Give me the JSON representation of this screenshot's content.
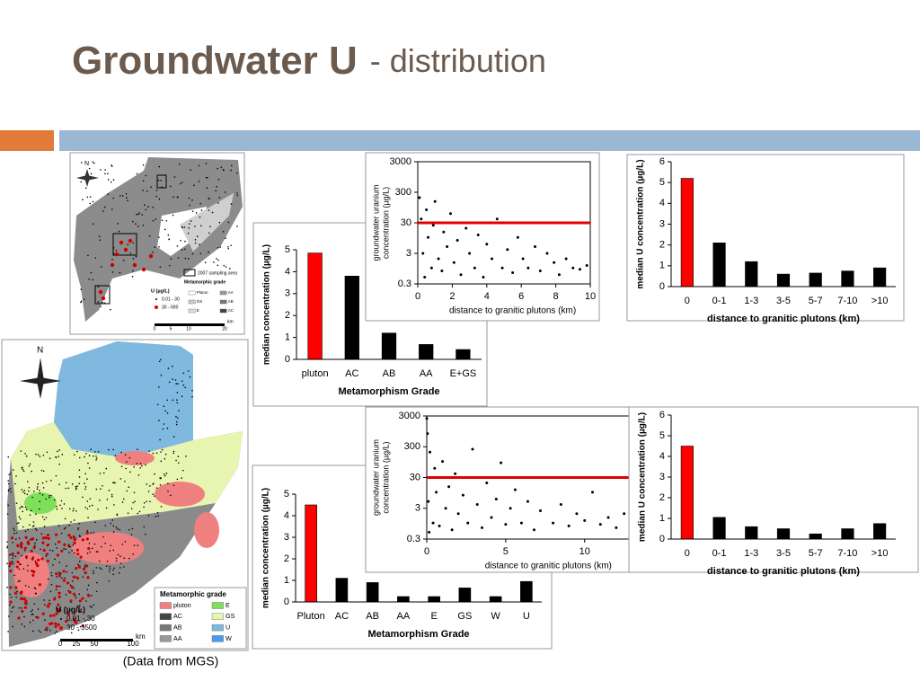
{
  "title": "Groundwater U",
  "subtitle": "- distribution",
  "caption": "(Data from MGS)",
  "maps": [
    {
      "north": "N",
      "sampling_area": "2007 sampling area",
      "legend_title": "Metamorphic grade",
      "grades": [
        "Pluton",
        "GS",
        "E",
        "AA",
        "AB",
        "AC"
      ],
      "grade_colors": [
        "#ffffff",
        "#cccccc",
        "#dddddd",
        "#999999",
        "#777777",
        "#444444"
      ],
      "u_title": "U (µg/L)",
      "u_classes": [
        "0.01 - 30",
        "30 - 690"
      ],
      "u_colors": [
        "#000000",
        "#e00000"
      ],
      "scale": [
        "0",
        "5",
        "10",
        "20"
      ],
      "scale_unit": "km"
    },
    {
      "north": "N",
      "legend_title": "Metamorphic grade",
      "grades": [
        "pluton",
        "E",
        "AC",
        "GS",
        "AB",
        "U",
        "AA",
        "W"
      ],
      "grade_colors": [
        "#f08080",
        "#7ee05a",
        "#444444",
        "#e8f5b0",
        "#777777",
        "#7fb9e0",
        "#999999",
        "#4a9be8"
      ],
      "u_title": "U (µg/L)",
      "u_classes": [
        "0.01 - 30",
        "30 - 3500"
      ],
      "u_colors": [
        "#000000",
        "#e00000"
      ],
      "scale": [
        "0",
        "25",
        "50",
        "100"
      ],
      "scale_unit": "km"
    }
  ],
  "chart_data": [
    {
      "type": "bar",
      "categories": [
        "pluton",
        "AC",
        "AB",
        "AA",
        "E+GS"
      ],
      "values": [
        4.85,
        3.8,
        1.2,
        0.68,
        0.45
      ],
      "colors": [
        "#ff0000",
        "#000000",
        "#000000",
        "#000000",
        "#000000"
      ],
      "ylabel": "median concentration (µg/L)",
      "xlabel": "Metamorphism Grade",
      "ylim": [
        0,
        5
      ],
      "yticks": [
        0,
        1,
        2,
        3,
        4,
        5
      ]
    },
    {
      "type": "scatter",
      "x": [
        0.1,
        0.2,
        0.3,
        0.4,
        0.5,
        0.6,
        0.8,
        0.9,
        1.0,
        1.2,
        1.4,
        1.5,
        1.7,
        1.9,
        2.1,
        2.3,
        2.5,
        2.8,
        3.0,
        3.3,
        3.5,
        3.8,
        4.0,
        4.3,
        4.6,
        4.9,
        5.2,
        5.5,
        5.8,
        6.1,
        6.4,
        6.8,
        7.1,
        7.5,
        7.9,
        8.2,
        8.6,
        9.0,
        9.4,
        9.8
      ],
      "values": [
        200,
        40,
        3,
        0.5,
        80,
        10,
        1,
        25,
        150,
        2,
        0.8,
        15,
        5,
        60,
        1.5,
        8,
        0.6,
        20,
        3,
        1,
        12,
        0.5,
        6,
        2,
        40,
        1,
        4,
        0.7,
        10,
        2,
        1,
        5,
        0.8,
        3,
        1.5,
        0.6,
        2,
        1,
        0.9,
        1.2
      ],
      "color": "#000000",
      "reference_line": 30,
      "reference_color": "#e00000",
      "log_y": true,
      "ylabel": [
        "groundwater uranium",
        "concentration (µg/L)"
      ],
      "xlabel": "distance to granitic plutons (km)",
      "xlim": [
        0,
        10
      ],
      "xticks": [
        0,
        2,
        4,
        6,
        8,
        10
      ],
      "ylim": [
        0.3,
        3000
      ],
      "yticks": [
        0.3,
        3,
        30,
        300,
        3000
      ]
    },
    {
      "type": "bar",
      "categories": [
        "0",
        "0-1",
        "1-3",
        "3-5",
        "5-7",
        "7-10",
        ">10"
      ],
      "values": [
        5.2,
        2.1,
        1.2,
        0.6,
        0.65,
        0.75,
        0.9
      ],
      "colors": [
        "#ff0000",
        "#000000",
        "#000000",
        "#000000",
        "#000000",
        "#000000",
        "#000000"
      ],
      "ylabel": "median U concentration (µg/L)",
      "xlabel": "distance to granitic plutons (km)",
      "ylim": [
        0,
        6
      ],
      "yticks": [
        0,
        1,
        2,
        3,
        4,
        5,
        6
      ]
    },
    {
      "type": "bar",
      "categories": [
        "Pluton",
        "AC",
        "AB",
        "AA",
        "E",
        "GS",
        "W",
        "U"
      ],
      "values": [
        4.5,
        1.1,
        0.9,
        0.25,
        0.25,
        0.65,
        0.25,
        0.95
      ],
      "colors": [
        "#ff0000",
        "#000000",
        "#000000",
        "#000000",
        "#000000",
        "#000000",
        "#000000",
        "#000000"
      ],
      "ylabel": "median concentration (µg/L)",
      "xlabel": "Metamorphism Grade",
      "ylim": [
        0,
        5
      ],
      "yticks": [
        0,
        1,
        2,
        3,
        4,
        5
      ]
    },
    {
      "type": "scatter",
      "x": [
        0,
        0.05,
        0.1,
        0.15,
        0.2,
        0.3,
        0.4,
        0.5,
        0.6,
        0.8,
        1,
        1.2,
        1.4,
        1.6,
        1.8,
        2,
        2.3,
        2.6,
        2.9,
        3.2,
        3.5,
        3.8,
        4.1,
        4.4,
        4.7,
        5,
        5.3,
        5.6,
        6,
        6.4,
        6.8,
        7.2,
        7.6,
        8,
        8.5,
        9,
        9.5,
        10,
        10.5,
        11,
        11.5,
        12,
        12.5,
        13,
        13.5
      ],
      "values": [
        2500,
        800,
        5,
        0.5,
        200,
        30,
        1,
        60,
        10,
        0.8,
        100,
        3,
        15,
        0.6,
        40,
        2,
        8,
        1,
        250,
        4,
        0.7,
        20,
        1.5,
        6,
        90,
        0.9,
        3,
        12,
        1,
        5,
        0.6,
        2.5,
        30,
        1,
        4,
        0.8,
        2,
        1.2,
        10,
        0.9,
        1.5,
        0.7,
        2,
        1,
        3
      ],
      "color": "#000000",
      "reference_line": 30,
      "reference_color": "#e00000",
      "log_y": true,
      "ylabel": [
        "groundwater uranium",
        "concentration (µg/L)"
      ],
      "xlabel": "distance to granitic plutons (km)",
      "xlim": [
        0,
        14
      ],
      "xticks": [
        0,
        5,
        10
      ],
      "ylim": [
        0.3,
        3000
      ],
      "yticks": [
        0.3,
        3,
        30,
        300,
        3000
      ]
    },
    {
      "type": "bar",
      "categories": [
        "0",
        "0-1",
        "1-3",
        "3-5",
        "5-7",
        "7-10",
        ">10"
      ],
      "values": [
        4.5,
        1.05,
        0.6,
        0.5,
        0.25,
        0.5,
        0.75
      ],
      "colors": [
        "#ff0000",
        "#000000",
        "#000000",
        "#000000",
        "#000000",
        "#000000",
        "#000000"
      ],
      "ylabel": "median U concentration (µg/L)",
      "xlabel": "distance to granitic plutons (km)",
      "ylim": [
        0,
        6
      ],
      "yticks": [
        0,
        1,
        2,
        3,
        4,
        5,
        6
      ]
    }
  ]
}
